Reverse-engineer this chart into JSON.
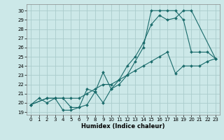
{
  "xlabel": "Humidex (Indice chaleur)",
  "background_color": "#cce8e8",
  "grid_color": "#aacccc",
  "line_color": "#1a6b6b",
  "xlim": [
    -0.5,
    23.5
  ],
  "ylim": [
    18.7,
    30.7
  ],
  "xticks": [
    0,
    1,
    2,
    3,
    4,
    5,
    6,
    7,
    8,
    9,
    10,
    11,
    12,
    13,
    14,
    15,
    16,
    17,
    18,
    19,
    20,
    21,
    22,
    23
  ],
  "yticks": [
    19,
    20,
    21,
    22,
    23,
    24,
    25,
    26,
    27,
    28,
    29,
    30
  ],
  "line1_x": [
    0,
    1,
    2,
    3,
    4,
    5,
    6,
    7,
    8,
    9,
    10,
    11,
    12,
    13,
    14,
    15,
    16,
    17,
    18,
    19,
    20,
    21,
    22,
    23
  ],
  "line1_y": [
    19.8,
    20.5,
    20.0,
    20.5,
    19.2,
    19.2,
    19.5,
    19.8,
    21.2,
    23.3,
    21.5,
    22.0,
    23.0,
    24.5,
    26.0,
    30.0,
    30.0,
    30.0,
    30.0,
    29.0,
    25.5,
    25.5,
    25.5,
    24.8
  ],
  "line2_x": [
    0,
    2,
    3,
    4,
    5,
    6,
    7,
    8,
    9,
    10,
    11,
    12,
    13,
    14,
    15,
    16,
    17,
    18,
    19,
    20,
    23
  ],
  "line2_y": [
    19.8,
    20.5,
    20.5,
    20.5,
    19.5,
    19.5,
    21.5,
    21.2,
    20.0,
    21.5,
    22.5,
    24.0,
    25.0,
    26.5,
    28.5,
    29.5,
    29.0,
    29.2,
    30.0,
    30.0,
    24.8
  ],
  "line3_x": [
    0,
    2,
    3,
    4,
    5,
    6,
    7,
    8,
    9,
    10,
    11,
    12,
    13,
    14,
    15,
    16,
    17,
    18,
    19,
    20,
    21,
    22,
    23
  ],
  "line3_y": [
    19.8,
    20.5,
    20.5,
    20.5,
    20.5,
    20.5,
    21.0,
    21.5,
    22.0,
    22.0,
    22.5,
    23.0,
    23.5,
    24.0,
    24.5,
    25.0,
    25.5,
    23.2,
    24.0,
    24.0,
    24.0,
    24.5,
    24.8
  ],
  "xlabel_fontsize": 6,
  "tick_fontsize": 5
}
